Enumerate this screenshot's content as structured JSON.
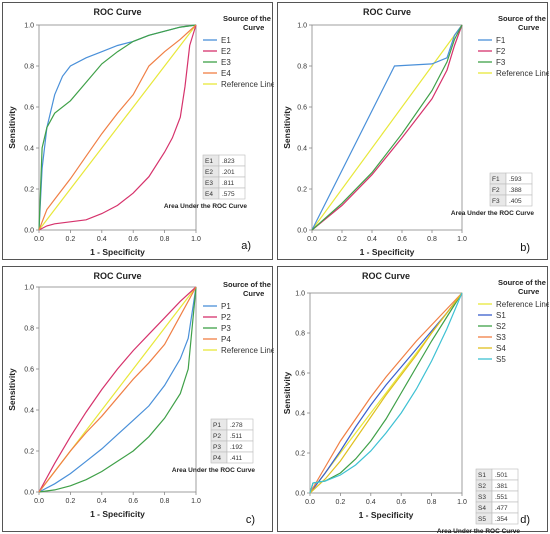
{
  "common": {
    "title": "ROC Curve",
    "xlabel": "1 - Specificity",
    "ylabel": "Sensitivity",
    "legend_title": [
      "Source of the",
      "Curve"
    ],
    "auc_caption": "Area Under the ROC Curve",
    "ref_label": "Reference Line",
    "ref_color": "#e8e83a"
  },
  "chart_data": [
    {
      "type": "line",
      "tag": "a)",
      "title": "ROC Curve",
      "xlabel": "1 - Specificity",
      "ylabel": "Sensitivity",
      "xlim": [
        0,
        1
      ],
      "ylim": [
        0,
        1
      ],
      "xticks": [
        "0.0",
        "0.2",
        "0.4",
        "0.6",
        "0.8",
        "1.0"
      ],
      "yticks": [
        "0.0",
        "0.2",
        "0.4",
        "0.6",
        "0.8",
        "1.0"
      ],
      "legend_pos": "right",
      "ref_first": false,
      "series": [
        {
          "name": "E1",
          "color": "#4a90d9",
          "x": [
            0,
            0.02,
            0.05,
            0.1,
            0.15,
            0.2,
            0.3,
            0.4,
            0.5,
            0.6,
            0.7,
            0.8,
            0.9,
            1
          ],
          "y": [
            0,
            0.3,
            0.5,
            0.66,
            0.75,
            0.8,
            0.84,
            0.87,
            0.9,
            0.92,
            0.95,
            0.97,
            0.99,
            1
          ]
        },
        {
          "name": "E2",
          "color": "#d6336c",
          "x": [
            0,
            0.05,
            0.1,
            0.2,
            0.3,
            0.4,
            0.5,
            0.6,
            0.7,
            0.8,
            0.85,
            0.9,
            0.93,
            0.96,
            1
          ],
          "y": [
            0,
            0.02,
            0.03,
            0.04,
            0.05,
            0.08,
            0.12,
            0.18,
            0.26,
            0.38,
            0.45,
            0.55,
            0.7,
            0.9,
            1
          ]
        },
        {
          "name": "E3",
          "color": "#3fa048",
          "x": [
            0,
            0.02,
            0.05,
            0.1,
            0.2,
            0.3,
            0.4,
            0.5,
            0.6,
            0.7,
            0.8,
            0.9,
            1
          ],
          "y": [
            0,
            0.4,
            0.5,
            0.57,
            0.63,
            0.72,
            0.81,
            0.87,
            0.92,
            0.95,
            0.97,
            0.99,
            1
          ]
        },
        {
          "name": "E4",
          "color": "#f07f45",
          "x": [
            0,
            0.05,
            0.1,
            0.2,
            0.3,
            0.4,
            0.5,
            0.6,
            0.7,
            0.8,
            0.9,
            1
          ],
          "y": [
            0,
            0.1,
            0.15,
            0.25,
            0.36,
            0.47,
            0.57,
            0.66,
            0.8,
            0.87,
            0.93,
            1
          ]
        }
      ],
      "auc": [
        [
          "E1",
          ".823"
        ],
        [
          "E2",
          ".201"
        ],
        [
          "E3",
          ".811"
        ],
        [
          "E4",
          ".575"
        ]
      ]
    },
    {
      "type": "line",
      "tag": "b)",
      "title": "ROC Curve",
      "xlabel": "1 - Specificity",
      "ylabel": "Sensitivity",
      "xlim": [
        0,
        1
      ],
      "ylim": [
        0,
        1
      ],
      "xticks": [
        "0.0",
        "0.2",
        "0.4",
        "0.6",
        "0.8",
        "1.0"
      ],
      "yticks": [
        "0.0",
        "0.2",
        "0.4",
        "0.6",
        "0.8",
        "1.0"
      ],
      "legend_pos": "right",
      "ref_first": false,
      "series": [
        {
          "name": "F1",
          "color": "#4a90d9",
          "x": [
            0,
            0.55,
            0.8,
            0.9,
            0.95,
            1
          ],
          "y": [
            0,
            0.8,
            0.81,
            0.84,
            0.95,
            1
          ]
        },
        {
          "name": "F2",
          "color": "#d6336c",
          "x": [
            0,
            0.2,
            0.4,
            0.6,
            0.8,
            0.9,
            0.95,
            1
          ],
          "y": [
            0,
            0.12,
            0.27,
            0.45,
            0.64,
            0.78,
            0.9,
            1
          ]
        },
        {
          "name": "F3",
          "color": "#3fa048",
          "x": [
            0,
            0.2,
            0.4,
            0.6,
            0.8,
            0.9,
            0.95,
            1
          ],
          "y": [
            0,
            0.13,
            0.28,
            0.47,
            0.68,
            0.82,
            0.93,
            1
          ]
        }
      ],
      "auc": [
        [
          "F1",
          ".593"
        ],
        [
          "F2",
          ".388"
        ],
        [
          "F3",
          ".405"
        ]
      ]
    },
    {
      "type": "line",
      "tag": "c)",
      "title": "ROC Curve",
      "xlabel": "1 - Specificity",
      "ylabel": "Sensitivity",
      "xlim": [
        0,
        1
      ],
      "ylim": [
        0,
        1
      ],
      "xticks": [
        "0.0",
        "0.2",
        "0.4",
        "0.6",
        "0.8",
        "1.0"
      ],
      "yticks": [
        "0.0",
        "0.2",
        "0.4",
        "0.6",
        "0.8",
        "1.0"
      ],
      "legend_pos": "right",
      "ref_first": false,
      "series": [
        {
          "name": "P1",
          "color": "#4a90d9",
          "x": [
            0,
            0.1,
            0.2,
            0.3,
            0.4,
            0.5,
            0.6,
            0.7,
            0.8,
            0.9,
            0.95,
            1
          ],
          "y": [
            0,
            0.04,
            0.09,
            0.15,
            0.21,
            0.28,
            0.35,
            0.42,
            0.52,
            0.65,
            0.75,
            1
          ]
        },
        {
          "name": "P2",
          "color": "#d6336c",
          "x": [
            0,
            0.1,
            0.2,
            0.3,
            0.4,
            0.5,
            0.6,
            0.7,
            0.8,
            0.9,
            1
          ],
          "y": [
            0,
            0.14,
            0.27,
            0.39,
            0.5,
            0.6,
            0.69,
            0.77,
            0.85,
            0.93,
            1
          ]
        },
        {
          "name": "P3",
          "color": "#3fa048",
          "x": [
            0,
            0.1,
            0.2,
            0.3,
            0.4,
            0.5,
            0.6,
            0.7,
            0.8,
            0.9,
            0.95,
            1
          ],
          "y": [
            0,
            0.01,
            0.03,
            0.06,
            0.1,
            0.15,
            0.2,
            0.27,
            0.36,
            0.48,
            0.6,
            1
          ]
        },
        {
          "name": "P4",
          "color": "#f07f45",
          "x": [
            0,
            0.1,
            0.2,
            0.3,
            0.4,
            0.5,
            0.6,
            0.7,
            0.8,
            0.9,
            1
          ],
          "y": [
            0,
            0.1,
            0.2,
            0.29,
            0.37,
            0.46,
            0.55,
            0.63,
            0.72,
            0.86,
            1
          ]
        }
      ],
      "auc": [
        [
          "P1",
          ".278"
        ],
        [
          "P2",
          ".511"
        ],
        [
          "P3",
          ".192"
        ],
        [
          "P4",
          ".411"
        ]
      ]
    },
    {
      "type": "line",
      "tag": "d)",
      "title": "ROC Curve",
      "xlabel": "1 - Specificity",
      "ylabel": "Sensitivity",
      "xlim": [
        0,
        1
      ],
      "ylim": [
        0,
        1
      ],
      "xticks": [
        "0.0",
        "0.2",
        "0.4",
        "0.6",
        "0.8",
        "1.0"
      ],
      "yticks": [
        "0.0",
        "0.2",
        "0.4",
        "0.6",
        "0.8",
        "1.0"
      ],
      "legend_pos": "right",
      "ref_first": true,
      "series": [
        {
          "name": "S1",
          "color": "#3a5fcd",
          "x": [
            0,
            0.1,
            0.2,
            0.3,
            0.4,
            0.5,
            0.6,
            0.7,
            0.8,
            0.9,
            1
          ],
          "y": [
            0,
            0.1,
            0.21,
            0.33,
            0.44,
            0.54,
            0.63,
            0.72,
            0.81,
            0.9,
            1
          ]
        },
        {
          "name": "S2",
          "color": "#3fa048",
          "x": [
            0,
            0.02,
            0.1,
            0.2,
            0.3,
            0.4,
            0.5,
            0.6,
            0.7,
            0.8,
            0.9,
            1
          ],
          "y": [
            0,
            0.05,
            0.06,
            0.1,
            0.17,
            0.26,
            0.37,
            0.5,
            0.63,
            0.76,
            0.88,
            1
          ]
        },
        {
          "name": "S3",
          "color": "#f07f45",
          "x": [
            0,
            0.1,
            0.2,
            0.3,
            0.4,
            0.5,
            0.6,
            0.7,
            0.8,
            0.9,
            1
          ],
          "y": [
            0,
            0.13,
            0.26,
            0.37,
            0.48,
            0.58,
            0.67,
            0.76,
            0.84,
            0.92,
            1
          ]
        },
        {
          "name": "S4",
          "color": "#e0c020",
          "x": [
            0,
            0.1,
            0.2,
            0.3,
            0.4,
            0.5,
            0.6,
            0.7,
            0.8,
            0.9,
            1
          ],
          "y": [
            0,
            0.07,
            0.16,
            0.27,
            0.38,
            0.49,
            0.59,
            0.69,
            0.8,
            0.9,
            1
          ]
        },
        {
          "name": "S5",
          "color": "#3ec1d3",
          "x": [
            0,
            0.02,
            0.1,
            0.2,
            0.3,
            0.4,
            0.5,
            0.6,
            0.7,
            0.8,
            0.9,
            1
          ],
          "y": [
            0,
            0.05,
            0.06,
            0.09,
            0.14,
            0.21,
            0.3,
            0.4,
            0.52,
            0.66,
            0.82,
            1
          ]
        }
      ],
      "auc": [
        [
          "S1",
          ".501"
        ],
        [
          "S2",
          ".381"
        ],
        [
          "S3",
          ".551"
        ],
        [
          "S4",
          ".477"
        ],
        [
          "S5",
          ".354"
        ]
      ]
    }
  ]
}
